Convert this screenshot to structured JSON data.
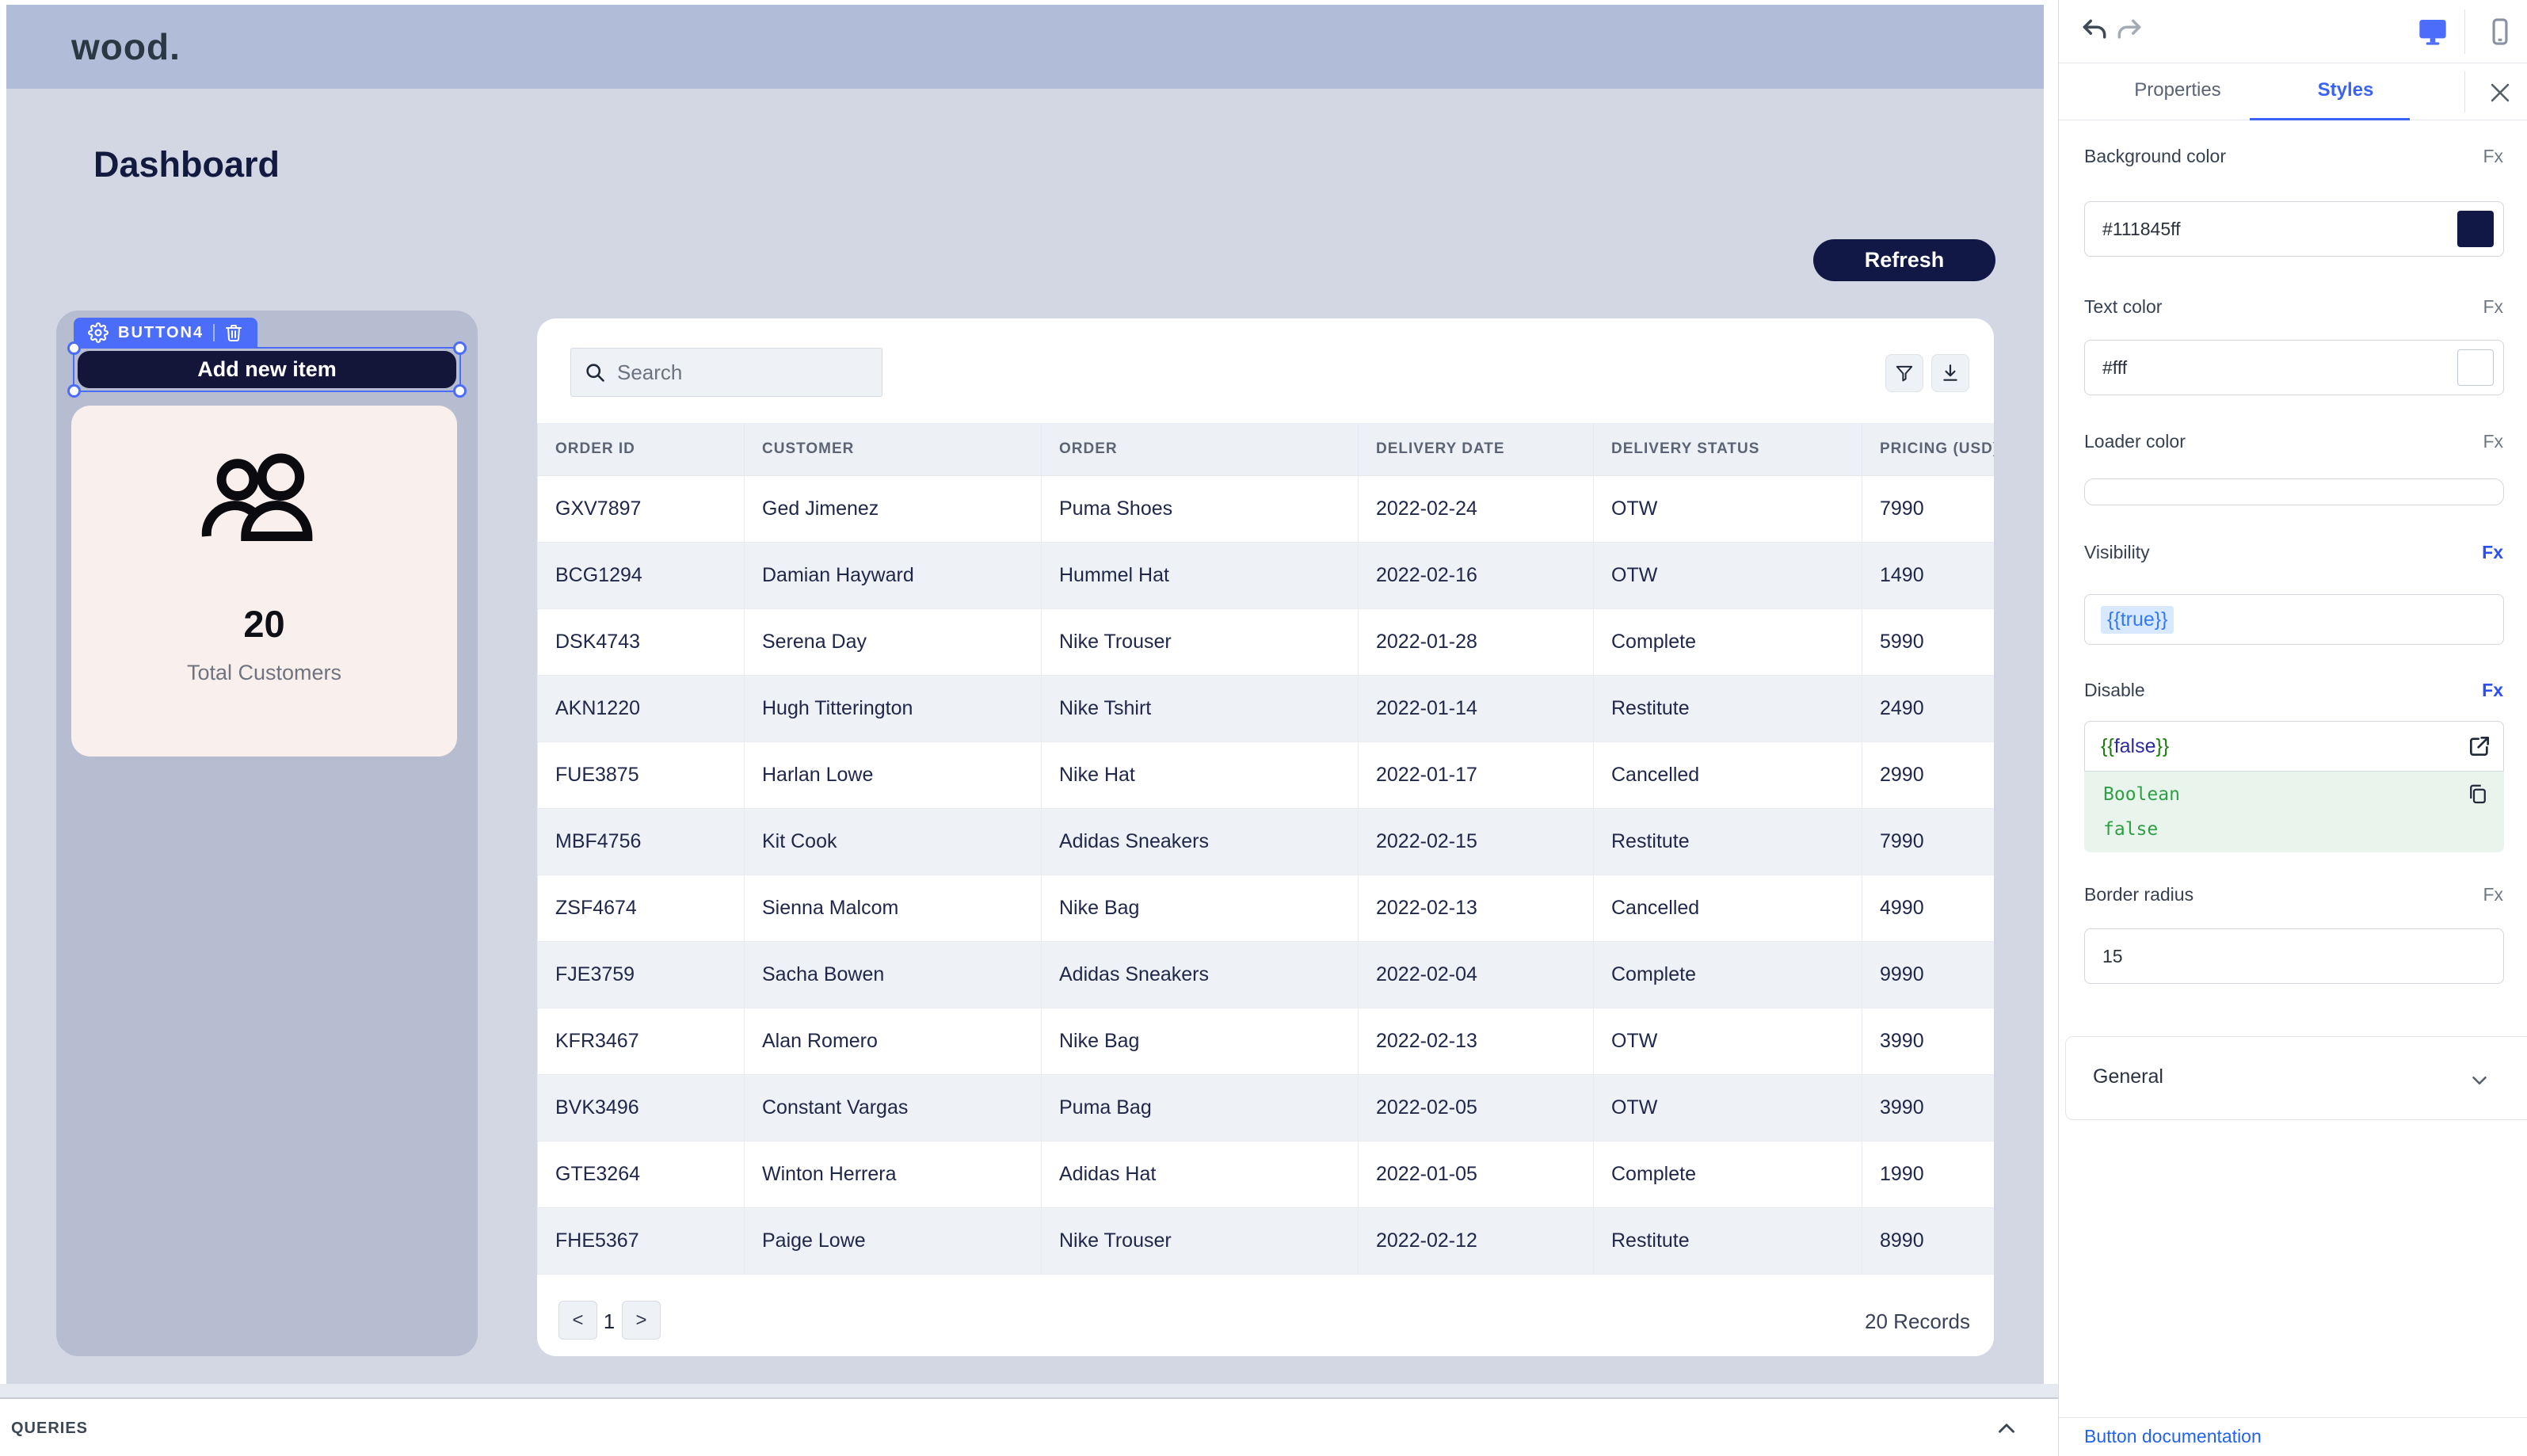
{
  "canvas": {
    "logo": "wood.",
    "page_title": "Dashboard",
    "refresh_label": "Refresh",
    "widget": {
      "badge_label": "BUTTON4",
      "button_label": "Add new item",
      "stat_value": "20",
      "stat_label": "Total Customers"
    },
    "table": {
      "search_placeholder": "Search",
      "columns": [
        "ORDER ID",
        "CUSTOMER",
        "ORDER",
        "DELIVERY DATE",
        "DELIVERY STATUS",
        "PRICING (USD)"
      ],
      "rows": [
        [
          "GXV7897",
          "Ged Jimenez",
          "Puma Shoes",
          "2022-02-24",
          "OTW",
          "7990"
        ],
        [
          "BCG1294",
          "Damian Hayward",
          "Hummel Hat",
          "2022-02-16",
          "OTW",
          "1490"
        ],
        [
          "DSK4743",
          "Serena Day",
          "Nike Trouser",
          "2022-01-28",
          "Complete",
          "5990"
        ],
        [
          "AKN1220",
          "Hugh Titterington",
          "Nike Tshirt",
          "2022-01-14",
          "Restitute",
          "2490"
        ],
        [
          "FUE3875",
          "Harlan Lowe",
          "Nike Hat",
          "2022-01-17",
          "Cancelled",
          "2990"
        ],
        [
          "MBF4756",
          "Kit Cook",
          "Adidas Sneakers",
          "2022-02-15",
          "Restitute",
          "7990"
        ],
        [
          "ZSF4674",
          "Sienna Malcom",
          "Nike Bag",
          "2022-02-13",
          "Cancelled",
          "4990"
        ],
        [
          "FJE3759",
          "Sacha Bowen",
          "Adidas Sneakers",
          "2022-02-04",
          "Complete",
          "9990"
        ],
        [
          "KFR3467",
          "Alan Romero",
          "Nike Bag",
          "2022-02-13",
          "OTW",
          "3990"
        ],
        [
          "BVK3496",
          "Constant Vargas",
          "Puma Bag",
          "2022-02-05",
          "OTW",
          "3990"
        ],
        [
          "GTE3264",
          "Winton Herrera",
          "Adidas Hat",
          "2022-01-05",
          "Complete",
          "1990"
        ],
        [
          "FHE5367",
          "Paige Lowe",
          "Nike Trouser",
          "2022-02-12",
          "Restitute",
          "8990"
        ]
      ],
      "pagination": {
        "prev": "<",
        "page": "1",
        "next": ">",
        "records": "20 Records"
      }
    },
    "queries_label": "QUERIES"
  },
  "panel": {
    "tabs": {
      "properties": "Properties",
      "styles": "Styles"
    },
    "fields": {
      "background_color": {
        "label": "Background color",
        "fx": "Fx",
        "value": "#111845ff",
        "swatch": "#111845"
      },
      "text_color": {
        "label": "Text color",
        "fx": "Fx",
        "value": "#fff",
        "swatch": "#ffffff"
      },
      "loader_color": {
        "label": "Loader color",
        "fx": "Fx",
        "value": ""
      },
      "visibility": {
        "label": "Visibility",
        "fx": "Fx",
        "value": "{{true}}"
      },
      "disable": {
        "label": "Disable",
        "fx": "Fx",
        "open": "{{",
        "keyword": "false",
        "close": "}}",
        "result_type": "Boolean",
        "result_value": "false"
      },
      "border_radius": {
        "label": "Border radius",
        "fx": "Fx",
        "value": "15"
      }
    },
    "general_label": "General",
    "doc_link": "Button documentation"
  },
  "icons": {
    "search": "magnifier",
    "filter": "funnel",
    "download": "arrow-down-to-line",
    "users": "two-people-outline",
    "gear": "settings-gear",
    "trash": "trash-can",
    "undo": "arrow-undo",
    "redo": "arrow-redo",
    "desktop": "monitor",
    "mobile": "phone",
    "close": "x",
    "external": "open-in-new",
    "copy": "duplicate",
    "chevron_down": "chevron-down",
    "chevron_up": "chevron-up"
  },
  "colors": {
    "brand_navy": "#111845",
    "accent_blue": "#4c6cfa",
    "tab_blue": "#3b63f3",
    "canvas_bg": "#d3d7e4",
    "header_band": "#b1bcd8",
    "widget_panel": "#b7bdd0",
    "card_pink": "#f9efec",
    "stripe": "#eef1f6",
    "green": "#2f9e44",
    "link_blue": "#2563eb"
  }
}
